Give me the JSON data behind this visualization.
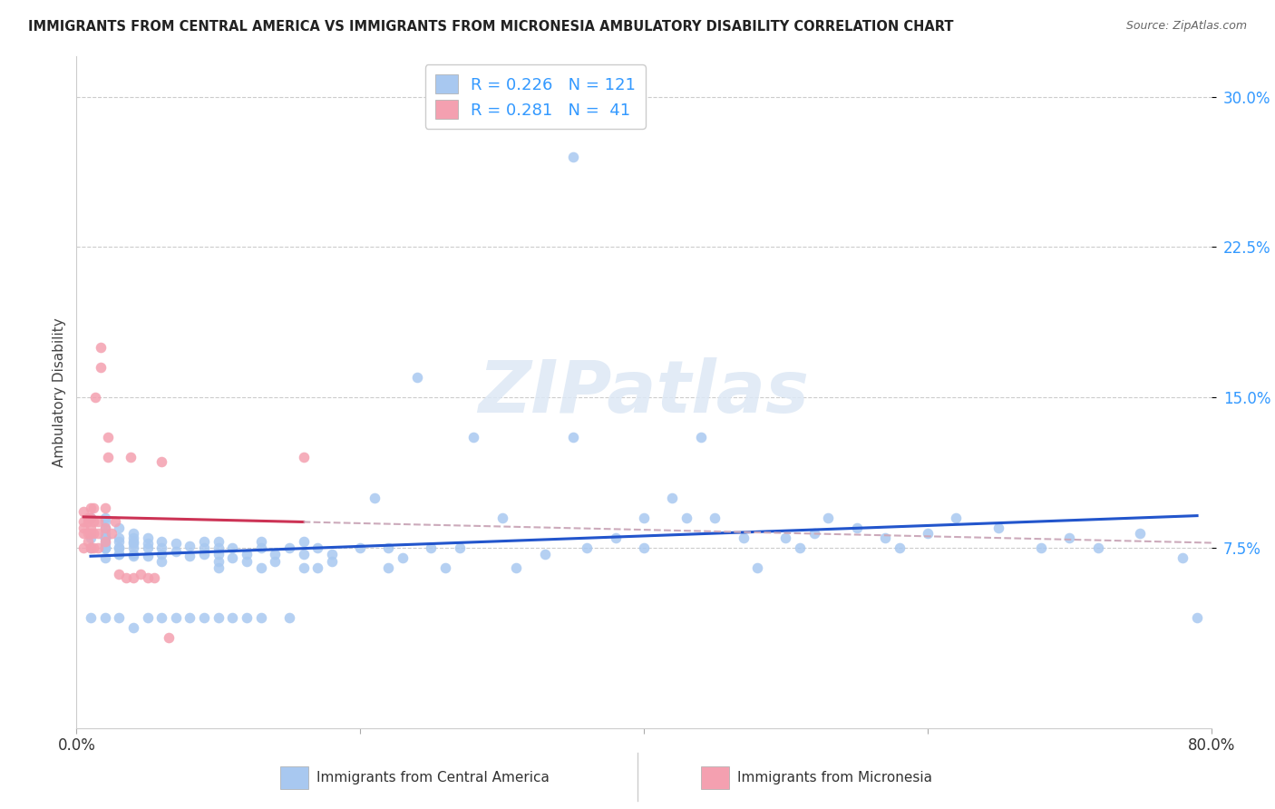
{
  "title": "IMMIGRANTS FROM CENTRAL AMERICA VS IMMIGRANTS FROM MICRONESIA AMBULATORY DISABILITY CORRELATION CHART",
  "source": "Source: ZipAtlas.com",
  "ylabel": "Ambulatory Disability",
  "yticks": [
    "7.5%",
    "15.0%",
    "22.5%",
    "30.0%"
  ],
  "ytick_vals": [
    0.075,
    0.15,
    0.225,
    0.3
  ],
  "xlim": [
    0.0,
    0.8
  ],
  "ylim": [
    -0.015,
    0.32
  ],
  "legend_blue_r": "0.226",
  "legend_blue_n": "121",
  "legend_pink_r": "0.281",
  "legend_pink_n": "41",
  "legend_label_blue": "Immigrants from Central America",
  "legend_label_pink": "Immigrants from Micronesia",
  "blue_color": "#a8c8f0",
  "pink_color": "#f4a0b0",
  "trendline_blue_color": "#2255cc",
  "trendline_pink_color": "#cc3355",
  "trendline_pink_dashed_color": "#ccaabb",
  "watermark": "ZIPatlas",
  "blue_scatter_x": [
    0.01,
    0.01,
    0.01,
    0.02,
    0.02,
    0.02,
    0.02,
    0.02,
    0.02,
    0.02,
    0.02,
    0.02,
    0.02,
    0.02,
    0.02,
    0.03,
    0.03,
    0.03,
    0.03,
    0.03,
    0.03,
    0.03,
    0.04,
    0.04,
    0.04,
    0.04,
    0.04,
    0.04,
    0.04,
    0.05,
    0.05,
    0.05,
    0.05,
    0.06,
    0.06,
    0.06,
    0.06,
    0.07,
    0.07,
    0.08,
    0.08,
    0.09,
    0.09,
    0.09,
    0.1,
    0.1,
    0.1,
    0.1,
    0.1,
    0.11,
    0.11,
    0.12,
    0.12,
    0.13,
    0.13,
    0.13,
    0.14,
    0.14,
    0.15,
    0.16,
    0.16,
    0.16,
    0.17,
    0.17,
    0.18,
    0.18,
    0.2,
    0.21,
    0.22,
    0.22,
    0.23,
    0.24,
    0.25,
    0.26,
    0.27,
    0.28,
    0.3,
    0.31,
    0.33,
    0.35,
    0.36,
    0.38,
    0.4,
    0.4,
    0.42,
    0.43,
    0.44,
    0.45,
    0.47,
    0.48,
    0.5,
    0.51,
    0.52,
    0.53,
    0.55,
    0.57,
    0.58,
    0.6,
    0.62,
    0.65,
    0.68,
    0.7,
    0.72,
    0.75,
    0.78,
    0.79,
    0.01,
    0.02,
    0.03,
    0.04,
    0.05,
    0.06,
    0.07,
    0.08,
    0.09,
    0.1,
    0.11,
    0.12,
    0.13,
    0.15,
    0.35
  ],
  "blue_scatter_y": [
    0.09,
    0.08,
    0.075,
    0.085,
    0.075,
    0.08,
    0.09,
    0.08,
    0.08,
    0.075,
    0.082,
    0.077,
    0.07,
    0.075,
    0.088,
    0.072,
    0.075,
    0.078,
    0.08,
    0.075,
    0.085,
    0.072,
    0.08,
    0.075,
    0.082,
    0.071,
    0.077,
    0.072,
    0.078,
    0.075,
    0.08,
    0.077,
    0.071,
    0.078,
    0.072,
    0.075,
    0.068,
    0.077,
    0.073,
    0.071,
    0.076,
    0.075,
    0.078,
    0.072,
    0.075,
    0.065,
    0.072,
    0.068,
    0.078,
    0.07,
    0.075,
    0.072,
    0.068,
    0.075,
    0.078,
    0.065,
    0.072,
    0.068,
    0.075,
    0.065,
    0.078,
    0.072,
    0.065,
    0.075,
    0.068,
    0.072,
    0.075,
    0.1,
    0.075,
    0.065,
    0.07,
    0.16,
    0.075,
    0.065,
    0.075,
    0.13,
    0.09,
    0.065,
    0.072,
    0.13,
    0.075,
    0.08,
    0.09,
    0.075,
    0.1,
    0.09,
    0.13,
    0.09,
    0.08,
    0.065,
    0.08,
    0.075,
    0.082,
    0.09,
    0.085,
    0.08,
    0.075,
    0.082,
    0.09,
    0.085,
    0.075,
    0.08,
    0.075,
    0.082,
    0.07,
    0.04,
    0.04,
    0.04,
    0.04,
    0.035,
    0.04,
    0.04,
    0.04,
    0.04,
    0.04,
    0.04,
    0.04,
    0.04,
    0.04,
    0.04,
    0.27
  ],
  "pink_scatter_x": [
    0.005,
    0.005,
    0.005,
    0.005,
    0.005,
    0.008,
    0.008,
    0.008,
    0.008,
    0.01,
    0.01,
    0.01,
    0.01,
    0.01,
    0.012,
    0.012,
    0.012,
    0.012,
    0.013,
    0.015,
    0.015,
    0.015,
    0.017,
    0.017,
    0.02,
    0.02,
    0.02,
    0.022,
    0.022,
    0.025,
    0.027,
    0.03,
    0.035,
    0.038,
    0.04,
    0.045,
    0.05,
    0.055,
    0.06,
    0.065,
    0.16
  ],
  "pink_scatter_y": [
    0.075,
    0.082,
    0.088,
    0.093,
    0.085,
    0.078,
    0.082,
    0.088,
    0.09,
    0.075,
    0.082,
    0.09,
    0.095,
    0.085,
    0.075,
    0.082,
    0.088,
    0.095,
    0.15,
    0.075,
    0.082,
    0.088,
    0.165,
    0.175,
    0.095,
    0.085,
    0.078,
    0.13,
    0.12,
    0.082,
    0.088,
    0.062,
    0.06,
    0.12,
    0.06,
    0.062,
    0.06,
    0.06,
    0.118,
    0.03,
    0.12
  ]
}
